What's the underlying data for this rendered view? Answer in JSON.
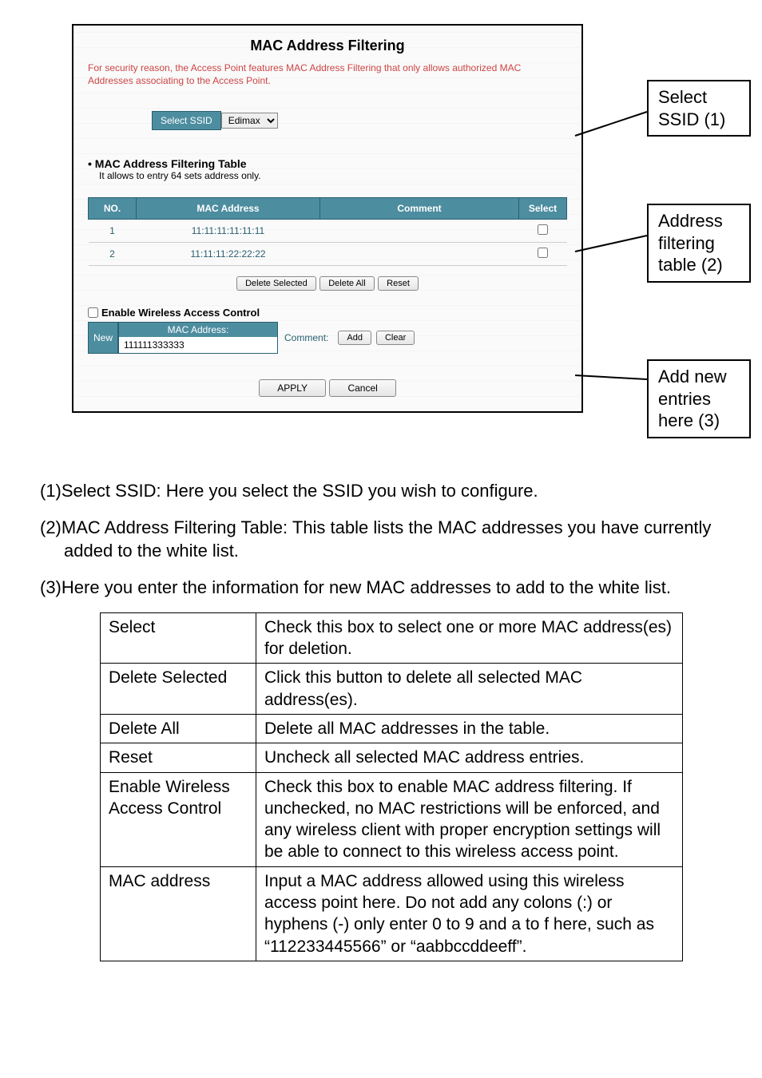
{
  "panel": {
    "title": "MAC Address Filtering",
    "desc": "For security reason, the Access Point features MAC Address Filtering that only allows authorized MAC Addresses associating to the Access Point.",
    "ssid_label": "Select SSID",
    "ssid_value": "Edimax",
    "filter_title": "MAC Address Filtering Table",
    "filter_sub": "It allows to entry 64 sets address only.",
    "cols": {
      "no": "NO.",
      "mac": "MAC Address",
      "comment": "Comment",
      "select": "Select"
    },
    "rows": [
      {
        "no": "1",
        "mac": "11:11:11:11:11:11",
        "comment": ""
      },
      {
        "no": "2",
        "mac": "11:11:11:22:22:22",
        "comment": ""
      }
    ],
    "btns": {
      "del_sel": "Delete Selected",
      "del_all": "Delete All",
      "reset": "Reset"
    },
    "enable_label": "Enable Wireless Access Control",
    "new_label": "New",
    "new_mac_hdr": "MAC Address:",
    "new_mac_val": "111111333333",
    "comment_label": "Comment:",
    "add": "Add",
    "clear": "Clear",
    "apply": "APPLY",
    "cancel": "Cancel"
  },
  "callouts": {
    "c1": "Select SSID (1)",
    "c2": "Address filtering table (2)",
    "c3": "Add new entries here (3)"
  },
  "notes": {
    "n1": "(1)Select SSID: Here you select the SSID you wish to configure.",
    "n2": "(2)MAC Address Filtering Table: This table lists the MAC addresses you have currently added to the white list.",
    "n3": "(3)Here you enter the information for new MAC addresses to add to the white list."
  },
  "ref": [
    {
      "k": "Select",
      "v": "Check this box to select one or more MAC address(es) for deletion."
    },
    {
      "k": "Delete Selected",
      "v": "Click this button to delete all selected MAC address(es)."
    },
    {
      "k": "Delete All",
      "v": "Delete all MAC addresses in the table."
    },
    {
      "k": "Reset",
      "v": "Uncheck all selected MAC address entries."
    },
    {
      "k": "Enable Wireless Access Control",
      "v": "Check this box to enable MAC address filtering. If unchecked, no MAC restrictions will be enforced, and any wireless client with proper encryption settings will be able to connect to this wireless access point."
    },
    {
      "k": "MAC address",
      "v": "Input a MAC address allowed using this wireless access point here. Do not add any colons (:) or hyphens (-) only enter 0 to 9 and a to f here, such as “112233445566” or “aabbccddeeff”."
    }
  ]
}
